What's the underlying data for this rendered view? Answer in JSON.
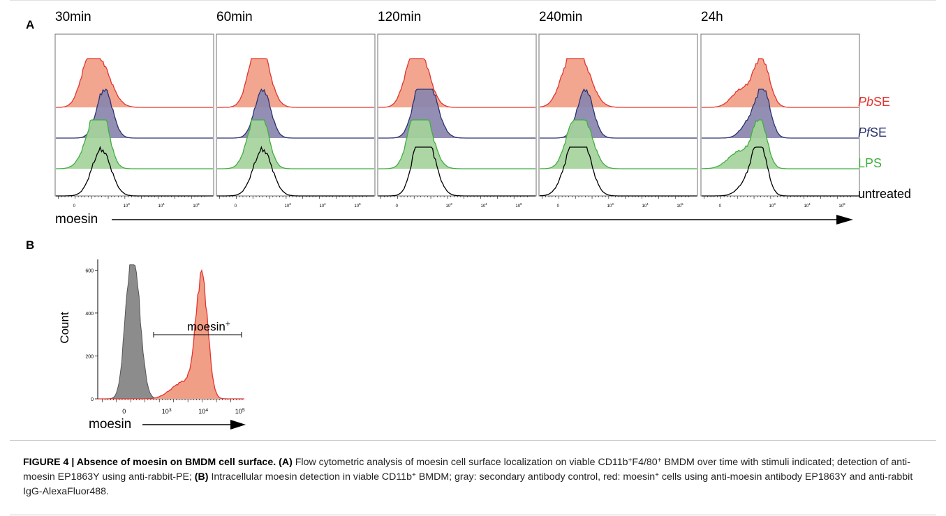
{
  "panel_a": {
    "letter": "A",
    "time_points": [
      "30min",
      "60min",
      "120min",
      "240min",
      "24h"
    ],
    "conditions": [
      {
        "prefix": "Pb",
        "suffix": "SE",
        "color": "#e3342f",
        "fill": "#f19e86"
      },
      {
        "prefix": "Pf",
        "suffix": "SE",
        "color": "#2b3270",
        "fill": "#8a86ae"
      },
      {
        "prefix": "",
        "suffix": "LPS",
        "color": "#3fae3f",
        "fill": "#a5d39c"
      },
      {
        "prefix": "",
        "suffix": "untreated",
        "color": "#000000",
        "fill": "none"
      }
    ],
    "x_ticks": [
      "0",
      "10",
      "10",
      "10"
    ],
    "x_tick_exponents": [
      "",
      "3",
      "4",
      "5"
    ],
    "x_axis_label": "moesin"
  },
  "panel_b": {
    "letter": "B",
    "y_axis_label": "Count",
    "y_ticks": [
      "0",
      "200",
      "400",
      "600"
    ],
    "x_ticks": [
      "0",
      "10",
      "10",
      "10"
    ],
    "x_tick_exponents": [
      "",
      "3",
      "4",
      "5"
    ],
    "x_axis_label": "moesin",
    "gate_label": "moesin",
    "gate_sup": "+",
    "control_color": "#8c8c8c",
    "sample_color": "#f19e86",
    "sample_line": "#e3342f"
  },
  "chart_data": [
    {
      "type": "histogram",
      "panel": "A",
      "x_scale": "biexponential",
      "x_ticks": [
        "0",
        "10^3",
        "10^4",
        "10^5"
      ],
      "facets": [
        "30min",
        "60min",
        "120min",
        "240min",
        "24h"
      ],
      "series": [
        {
          "name": "PbSE",
          "peak_position": "~10^2.3"
        },
        {
          "name": "PfSE",
          "peak_position": "~10^2.4"
        },
        {
          "name": "LPS",
          "peak_position": "~10^2.3"
        },
        {
          "name": "untreated",
          "peak_position": "~10^2.3"
        }
      ],
      "xlabel": "moesin"
    },
    {
      "type": "histogram",
      "panel": "B",
      "x_scale": "biexponential",
      "x_ticks": [
        "0",
        "10^3",
        "10^4",
        "10^5"
      ],
      "ylabel": "Count",
      "ylim": [
        0,
        650
      ],
      "series": [
        {
          "peak_position": "~10^2.2",
          "peak_count": 625
        },
        {
          "peak_position": "~10^4.1",
          "peak_count": 560
        }
      ],
      "gate": {
        "label": "moesin+",
        "from": "~10^2.8",
        "to": "~10^5"
      },
      "xlabel": "moesin"
    }
  ],
  "caption": {
    "figure_label": "FIGURE 4 | Absence of moesin on BMDM cell surface.",
    "part_a_tag": "(A)",
    "part_a_1": " Flow cytometric analysis of moesin cell surface localization on viable CD11b",
    "part_a_sup1": "+",
    "part_a_2": "F4/80",
    "part_a_sup2": "+",
    "part_a_3": " BMDM over time with stimuli indicated; detection of anti-moesin EP1863Y using anti-rabbit-PE; ",
    "part_b_tag": "(B)",
    "part_b_1": " Intracellular moesin detection in viable CD11b",
    "part_b_sup1": "+",
    "part_b_2": " BMDM; gray: secondary antibody control, red: moesin",
    "part_b_sup2": "+",
    "part_b_3": " cells using anti-moesin antibody EP1863Y and anti-rabbit IgG-AlexaFluor488."
  }
}
